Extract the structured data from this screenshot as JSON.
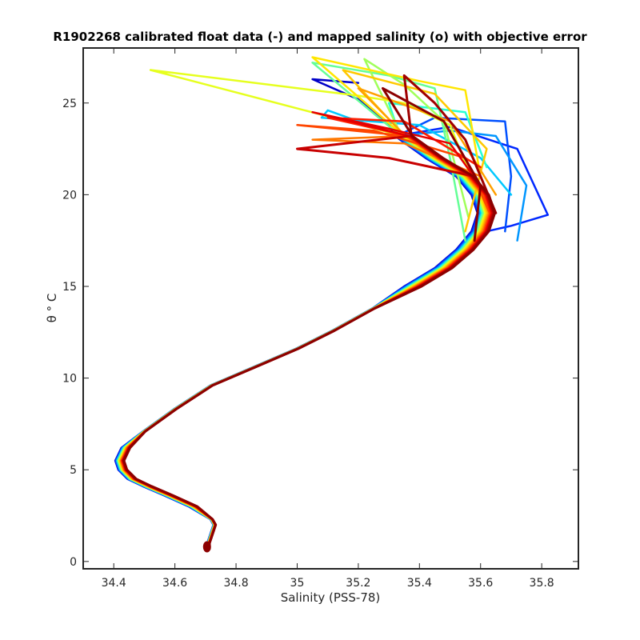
{
  "chart_data": {
    "type": "line",
    "title": "R1902268 calibrated float data (-) and mapped salinity (o) with objective error",
    "xlabel": "Salinity (PSS-78)",
    "ylabel": "θ ° C",
    "xlim": [
      34.3,
      35.92
    ],
    "ylim": [
      -0.4,
      28.0
    ],
    "xticks": [
      34.4,
      34.6,
      34.8,
      35,
      35.2,
      35.4,
      35.6,
      35.8
    ],
    "yticks": [
      0,
      5,
      10,
      15,
      20,
      25
    ],
    "grid": false,
    "colormap": "jet",
    "series_note_colors": [
      "#0000c8",
      "#0050ff",
      "#00b4ff",
      "#3cffc8",
      "#a0ff60",
      "#ffff00",
      "#ffb400",
      "#ff5000",
      "#d20000",
      "#8c0000"
    ],
    "base_profile": {
      "salinity": [
        34.71,
        34.71,
        34.73,
        34.72,
        34.66,
        34.58,
        34.51,
        34.46,
        34.43,
        34.42,
        34.44,
        34.5,
        34.6,
        34.72,
        34.86,
        35.0,
        35.12,
        35.25,
        35.38,
        35.48,
        35.55,
        35.6,
        35.62,
        35.6,
        35.55,
        35.45,
        35.35
      ],
      "theta": [
        0.7,
        1.0,
        2.0,
        2.3,
        3.0,
        3.6,
        4.1,
        4.5,
        5.0,
        5.5,
        6.2,
        7.1,
        8.3,
        9.6,
        10.6,
        11.6,
        12.6,
        13.8,
        15.0,
        16.0,
        17.0,
        18.0,
        19.0,
        20.0,
        21.0,
        22.0,
        23.2
      ]
    },
    "profiles": [
      {
        "color": "#0000c8",
        "surface": [
          [
            35.3,
            23.8
          ],
          [
            35.2,
            25.2
          ],
          [
            35.05,
            26.3
          ],
          [
            35.2,
            26.1
          ]
        ]
      },
      {
        "color": "#0028ff",
        "surface": [
          [
            35.5,
            23.7
          ],
          [
            35.72,
            22.5
          ],
          [
            35.82,
            18.9
          ],
          [
            35.7,
            18.3
          ],
          [
            35.62,
            18.0
          ]
        ]
      },
      {
        "color": "#0050ff",
        "surface": [
          [
            35.45,
            24.2
          ],
          [
            35.68,
            24.0
          ],
          [
            35.7,
            21.0
          ],
          [
            35.68,
            18.0
          ]
        ]
      },
      {
        "color": "#0096ff",
        "surface": [
          [
            35.5,
            23.5
          ],
          [
            35.65,
            23.2
          ],
          [
            35.75,
            20.5
          ],
          [
            35.72,
            17.5
          ]
        ]
      },
      {
        "color": "#00c8ff",
        "surface": [
          [
            35.1,
            24.6
          ],
          [
            35.08,
            24.2
          ],
          [
            35.4,
            23.8
          ],
          [
            35.6,
            22.0
          ],
          [
            35.7,
            20.0
          ]
        ]
      },
      {
        "color": "#28ffd2",
        "surface": [
          [
            35.3,
            25.0
          ],
          [
            35.55,
            24.5
          ],
          [
            35.62,
            21.5
          ]
        ]
      },
      {
        "color": "#64ff96",
        "surface": [
          [
            35.05,
            27.2
          ],
          [
            35.3,
            26.5
          ],
          [
            35.45,
            25.8
          ],
          [
            35.5,
            22.0
          ],
          [
            35.55,
            17.5
          ]
        ]
      },
      {
        "color": "#a0ff5a",
        "surface": [
          [
            35.22,
            27.4
          ],
          [
            35.35,
            26.0
          ],
          [
            35.48,
            24.0
          ],
          [
            35.56,
            18.8
          ]
        ]
      },
      {
        "color": "#e6ff1e",
        "surface": [
          [
            34.52,
            26.8
          ],
          [
            35.2,
            25.4
          ],
          [
            35.35,
            25.0
          ],
          [
            35.5,
            23.8
          ],
          [
            35.58,
            20.5
          ]
        ]
      },
      {
        "color": "#ffe600",
        "surface": [
          [
            35.05,
            27.5
          ],
          [
            35.4,
            26.2
          ],
          [
            35.55,
            25.7
          ],
          [
            35.6,
            21.0
          ]
        ]
      },
      {
        "color": "#ffc800",
        "surface": [
          [
            35.15,
            26.8
          ],
          [
            35.45,
            25.5
          ],
          [
            35.62,
            22.5
          ],
          [
            35.55,
            18.0
          ]
        ]
      },
      {
        "color": "#ffa000",
        "surface": [
          [
            35.2,
            25.8
          ],
          [
            35.5,
            24.0
          ],
          [
            35.65,
            20.0
          ]
        ]
      },
      {
        "color": "#ff7800",
        "surface": [
          [
            35.05,
            23.0
          ],
          [
            35.35,
            22.8
          ],
          [
            35.6,
            21.0
          ]
        ]
      },
      {
        "color": "#ff4600",
        "surface": [
          [
            35.0,
            23.8
          ],
          [
            35.25,
            23.5
          ],
          [
            35.55,
            22.0
          ],
          [
            35.63,
            19.0
          ]
        ]
      },
      {
        "color": "#ff1e00",
        "surface": [
          [
            35.1,
            24.2
          ],
          [
            35.35,
            24.0
          ],
          [
            35.6,
            21.5
          ]
        ]
      },
      {
        "color": "#e60000",
        "surface": [
          [
            35.05,
            24.5
          ],
          [
            35.3,
            23.6
          ],
          [
            35.5,
            22.8
          ],
          [
            35.62,
            20.0
          ]
        ]
      },
      {
        "color": "#c80000",
        "surface": [
          [
            35.0,
            22.5
          ],
          [
            35.3,
            22.0
          ],
          [
            35.58,
            21.0
          ]
        ]
      },
      {
        "color": "#a00000",
        "surface": [
          [
            35.35,
            26.5
          ],
          [
            35.45,
            25.0
          ],
          [
            35.55,
            23.0
          ],
          [
            35.65,
            19.0
          ]
        ]
      },
      {
        "color": "#8c0000",
        "surface": [
          [
            35.28,
            25.8
          ],
          [
            35.48,
            24.0
          ],
          [
            35.6,
            20.5
          ],
          [
            35.58,
            17.5
          ]
        ]
      }
    ]
  }
}
